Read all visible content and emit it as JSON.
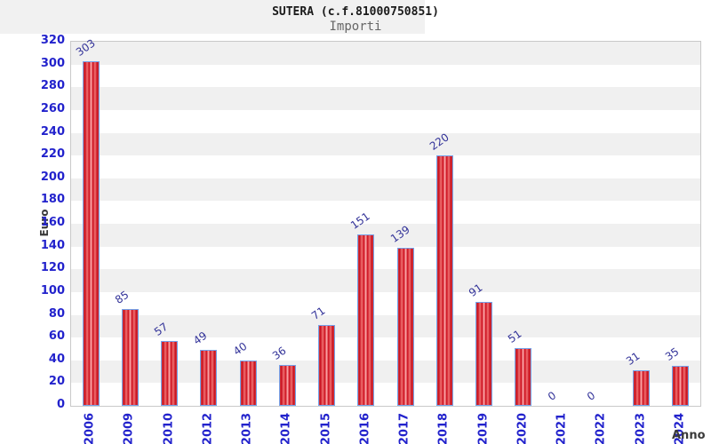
{
  "header": {
    "title": "SUTERA (c.f.81000750851)",
    "subtitle": "Importi"
  },
  "chart_data": {
    "type": "bar",
    "title": "SUTERA (c.f.81000750851)",
    "subtitle": "Importi",
    "categories": [
      "2006",
      "2009",
      "2010",
      "2012",
      "2013",
      "2014",
      "2015",
      "2016",
      "2017",
      "2018",
      "2019",
      "2020",
      "2021",
      "2022",
      "2023",
      "2024"
    ],
    "values": [
      303,
      85,
      57,
      49,
      40,
      36,
      71,
      151,
      139,
      220,
      91,
      51,
      0,
      0,
      31,
      35
    ],
    "xlabel": "Anno",
    "ylabel": "Euro",
    "ylim": [
      0,
      320
    ],
    "ytick_step": 20,
    "yticks": [
      0,
      20,
      40,
      60,
      80,
      100,
      120,
      140,
      160,
      180,
      200,
      220,
      240,
      260,
      280,
      300,
      320
    ],
    "grid": "alternating-horizontal-bands",
    "legend": "none",
    "value_labels": "rotated-above-bars",
    "colors": {
      "bar_fill_main": "#cc0d1c",
      "bar_fill_highlight": "#ffb2b2",
      "bar_border": "#74a2ea",
      "band_gray": "#f0f0f0",
      "plot_border": "#c9c9c9",
      "tick_label": "#2222cc",
      "value_label": "#333399",
      "axis_title": "#3a3a3a",
      "title_color": "#1a1a1a",
      "subtitle_color": "#666666",
      "header_shade": "#f1f1f1"
    }
  }
}
